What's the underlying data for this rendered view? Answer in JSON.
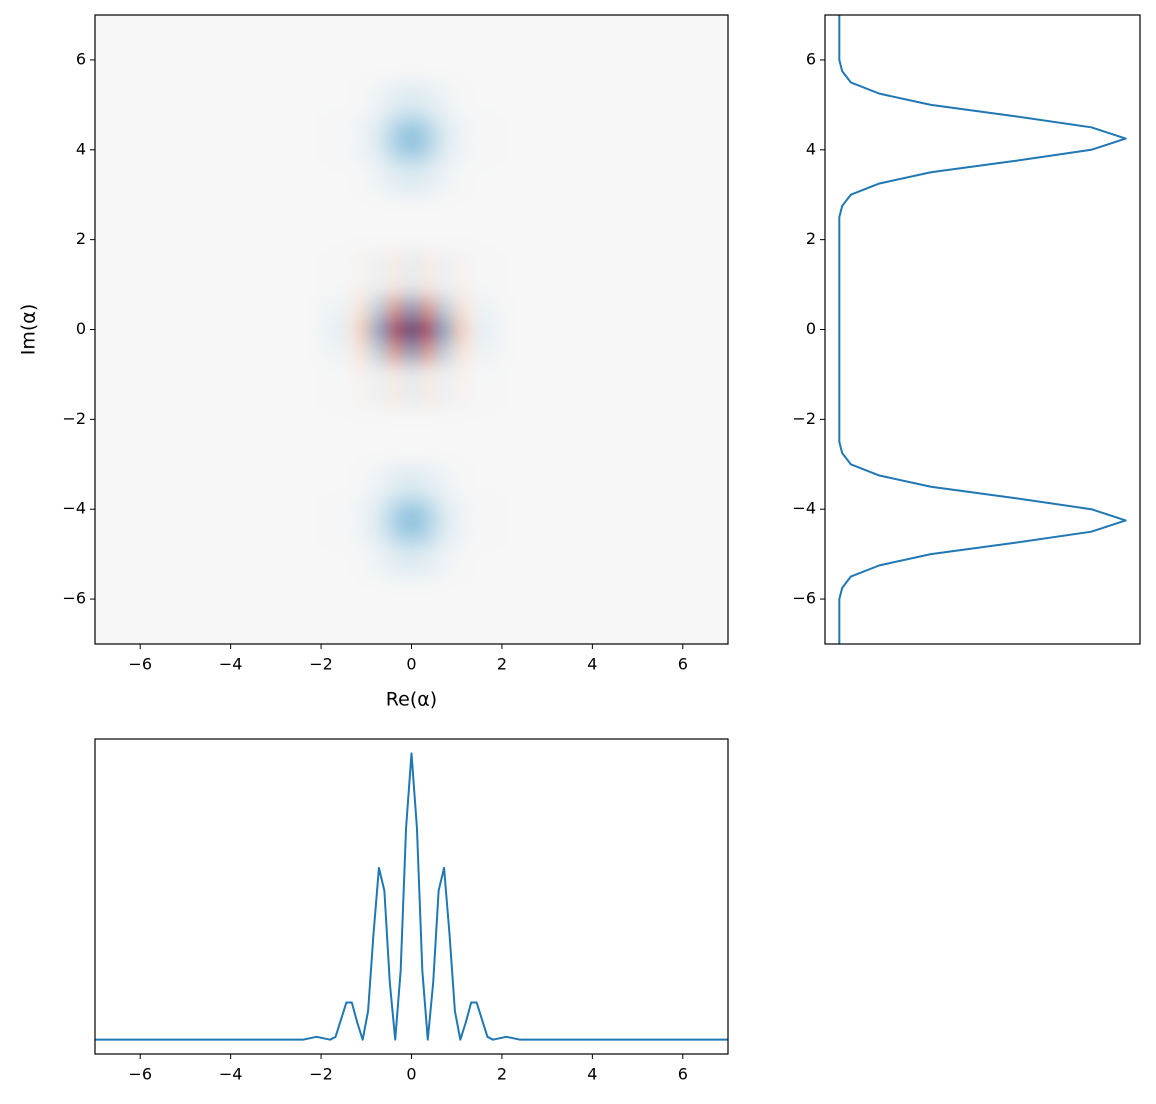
{
  "chart_data": [
    {
      "type": "heatmap",
      "xlabel": "Re(α)",
      "ylabel": "Im(α)",
      "colormap": "RdBu",
      "vlim": [
        -1,
        1
      ],
      "xlim": [
        -7,
        7
      ],
      "ylim": [
        -7,
        7
      ],
      "xticks": [
        {
          "value": -6,
          "label": "−6"
        },
        {
          "value": -4,
          "label": "−4"
        },
        {
          "value": -2,
          "label": "−2"
        },
        0,
        2,
        4,
        6
      ],
      "yticks": [
        {
          "value": -6,
          "label": "−6"
        },
        {
          "value": -4,
          "label": "−4"
        },
        {
          "value": -2,
          "label": "−2"
        },
        0,
        2,
        4,
        6
      ],
      "x": [
        -5,
        -2.5,
        -1.44,
        -1.08,
        -0.72,
        -0.36,
        0,
        0.36,
        0.72,
        1.08,
        1.44,
        2.5,
        5
      ],
      "y": [
        -6,
        -5,
        -4.6,
        -4.25,
        -3.9,
        -3.5,
        -2.5,
        -1,
        -0.5,
        0,
        0.5,
        1,
        2.5,
        3.5,
        3.9,
        4.25,
        4.6,
        5,
        6
      ],
      "values": [
        [
          0,
          0,
          0,
          0,
          0,
          0,
          0,
          0,
          0,
          0,
          0,
          0,
          0
        ],
        [
          0,
          0,
          0,
          0.01,
          0.05,
          0.11,
          0.14,
          0.11,
          0.05,
          0.01,
          0,
          0,
          0
        ],
        [
          0,
          0,
          0.01,
          0.04,
          0.12,
          0.27,
          0.35,
          0.27,
          0.12,
          0.04,
          0.01,
          0,
          0
        ],
        [
          0,
          0,
          0.01,
          0.05,
          0.16,
          0.35,
          0.45,
          0.35,
          0.16,
          0.05,
          0.01,
          0,
          0
        ],
        [
          0,
          0,
          0.01,
          0.04,
          0.12,
          0.27,
          0.35,
          0.27,
          0.12,
          0.04,
          0.01,
          0,
          0
        ],
        [
          0,
          0,
          0,
          0.01,
          0.05,
          0.11,
          0.14,
          0.11,
          0.05,
          0.01,
          0,
          0,
          0
        ],
        [
          0,
          0,
          0,
          0,
          0,
          0,
          0,
          0,
          0,
          0,
          0,
          0,
          0
        ],
        [
          0,
          0,
          0.01,
          -0.04,
          0.07,
          -0.1,
          0.12,
          -0.1,
          0.07,
          -0.04,
          0.01,
          0,
          0
        ],
        [
          0,
          0,
          0.05,
          -0.16,
          0.32,
          -0.46,
          0.54,
          -0.46,
          0.32,
          -0.16,
          0.05,
          0,
          0
        ],
        [
          0,
          0,
          0.09,
          -0.27,
          0.54,
          -0.77,
          0.9,
          -0.77,
          0.54,
          -0.27,
          0.09,
          0,
          0
        ],
        [
          0,
          0,
          0.05,
          -0.16,
          0.32,
          -0.46,
          0.54,
          -0.46,
          0.32,
          -0.16,
          0.05,
          0,
          0
        ],
        [
          0,
          0,
          0.01,
          -0.04,
          0.07,
          -0.1,
          0.12,
          -0.1,
          0.07,
          -0.04,
          0.01,
          0,
          0
        ],
        [
          0,
          0,
          0,
          0,
          0,
          0,
          0,
          0,
          0,
          0,
          0,
          0,
          0
        ],
        [
          0,
          0,
          0,
          0.01,
          0.05,
          0.11,
          0.14,
          0.11,
          0.05,
          0.01,
          0,
          0,
          0
        ],
        [
          0,
          0,
          0.01,
          0.04,
          0.12,
          0.27,
          0.35,
          0.27,
          0.12,
          0.04,
          0.01,
          0,
          0
        ],
        [
          0,
          0,
          0.01,
          0.05,
          0.16,
          0.35,
          0.45,
          0.35,
          0.16,
          0.05,
          0.01,
          0,
          0
        ],
        [
          0,
          0,
          0.01,
          0.04,
          0.12,
          0.27,
          0.35,
          0.27,
          0.12,
          0.04,
          0.01,
          0,
          0
        ],
        [
          0,
          0,
          0,
          0.01,
          0.05,
          0.11,
          0.14,
          0.11,
          0.05,
          0.01,
          0,
          0,
          0
        ],
        [
          0,
          0,
          0,
          0,
          0,
          0,
          0,
          0,
          0,
          0,
          0,
          0,
          0
        ]
      ]
    },
    {
      "type": "line",
      "color": "#1f77b4",
      "xlim": [
        -0.05,
        1.05
      ],
      "ylim": [
        -7,
        7
      ],
      "yticks": [
        {
          "value": -6,
          "label": "−6"
        },
        {
          "value": -4,
          "label": "−4"
        },
        {
          "value": -2,
          "label": "−2"
        },
        0,
        2,
        4,
        6
      ],
      "y": [
        -7,
        -6.75,
        -6.5,
        -6.25,
        -6,
        -5.75,
        -5.5,
        -5.25,
        -5,
        -4.75,
        -4.5,
        -4.25,
        -4,
        -3.75,
        -3.5,
        -3.25,
        -3,
        -2.75,
        -2.5,
        -2.25,
        -2,
        -1.75,
        -1.5,
        -1.25,
        -1,
        -0.75,
        -0.5,
        -0.25,
        0,
        0.25,
        0.5,
        0.75,
        1,
        1.25,
        1.5,
        1.75,
        2,
        2.25,
        2.5,
        2.75,
        3,
        3.25,
        3.5,
        3.75,
        4,
        4.25,
        4.5,
        4.75,
        5,
        5.25,
        5.5,
        5.75,
        6,
        6.25,
        6.5,
        6.75,
        7
      ],
      "values": [
        0,
        0,
        0,
        0,
        0,
        0.01,
        0.04,
        0.14,
        0.32,
        0.61,
        0.88,
        1,
        0.88,
        0.61,
        0.32,
        0.14,
        0.04,
        0.01,
        0,
        0,
        0,
        0,
        0,
        0,
        0,
        0,
        0,
        0,
        0,
        0,
        0,
        0,
        0,
        0,
        0,
        0,
        0,
        0,
        0,
        0.01,
        0.04,
        0.14,
        0.32,
        0.61,
        0.88,
        1,
        0.88,
        0.61,
        0.32,
        0.14,
        0.04,
        0.01,
        0,
        0,
        0,
        0,
        0
      ]
    },
    {
      "type": "line",
      "color": "#1f77b4",
      "xlim": [
        -7,
        7
      ],
      "ylim": [
        -0.05,
        1.05
      ],
      "xticks": [
        {
          "value": -6,
          "label": "−6"
        },
        {
          "value": -4,
          "label": "−4"
        },
        {
          "value": -2,
          "label": "−2"
        },
        0,
        2,
        4,
        6
      ],
      "x": [
        -7,
        -2.4,
        -2.1,
        -1.8,
        -1.68,
        -1.56,
        -1.44,
        -1.32,
        -1.2,
        -1.08,
        -0.96,
        -0.84,
        -0.72,
        -0.6,
        -0.48,
        -0.36,
        -0.24,
        -0.12,
        0,
        0.12,
        0.24,
        0.36,
        0.48,
        0.6,
        0.72,
        0.84,
        0.96,
        1.08,
        1.2,
        1.32,
        1.44,
        1.56,
        1.68,
        1.8,
        2.1,
        2.4,
        7
      ],
      "values": [
        0,
        0,
        0.01,
        0,
        0.01,
        0.07,
        0.13,
        0.13,
        0.06,
        0,
        0.1,
        0.37,
        0.6,
        0.52,
        0.2,
        0,
        0.24,
        0.74,
        1,
        0.74,
        0.24,
        0,
        0.2,
        0.52,
        0.6,
        0.37,
        0.1,
        0,
        0.06,
        0.13,
        0.13,
        0.07,
        0.01,
        0,
        0.01,
        0,
        0
      ]
    }
  ]
}
